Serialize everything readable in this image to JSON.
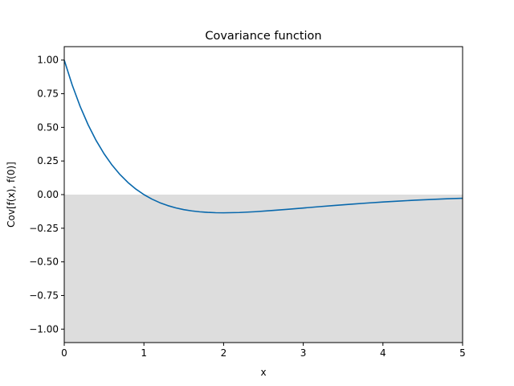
{
  "chart_data": {
    "type": "line",
    "title": "Covariance function",
    "xlabel": "x",
    "ylabel": "Cov[f(x), f(0)]",
    "xlim": [
      0,
      5
    ],
    "ylim": [
      -1.1,
      1.1
    ],
    "xticks": [
      0,
      1,
      2,
      3,
      4,
      5
    ],
    "xtick_labels": [
      "0",
      "1",
      "2",
      "3",
      "4",
      "5"
    ],
    "yticks": [
      1.0,
      0.75,
      0.5,
      0.25,
      0.0,
      -0.25,
      -0.5,
      -0.75,
      -1.0
    ],
    "ytick_labels": [
      "1.00",
      "0.75",
      "0.50",
      "0.25",
      "0.00",
      "−0.25",
      "−0.50",
      "−0.75",
      "−1.00"
    ],
    "grid": false,
    "shaded_region": {
      "y_from": -1.1,
      "y_to": 0.0,
      "color": "#dddddd"
    },
    "series": [
      {
        "color": "#0868ac",
        "x": [
          0,
          0.1,
          0.2,
          0.3,
          0.4,
          0.5,
          0.6,
          0.7,
          0.8,
          0.9,
          1.0,
          1.1,
          1.2,
          1.3,
          1.4,
          1.5,
          1.6,
          1.7,
          1.8,
          1.9,
          2.0,
          2.2,
          2.4,
          2.6,
          2.8,
          3.0,
          3.2,
          3.4,
          3.6,
          3.8,
          4.0,
          4.2,
          4.4,
          4.6,
          4.8,
          5.0
        ],
        "y": [
          1.0,
          0.8145,
          0.655,
          0.5186,
          0.4022,
          0.3033,
          0.2195,
          0.149,
          0.0899,
          0.0406,
          0.0,
          -0.0333,
          -0.0602,
          -0.0817,
          -0.0986,
          -0.1116,
          -0.1211,
          -0.1278,
          -0.1322,
          -0.1345,
          -0.1353,
          -0.133,
          -0.127,
          -0.1187,
          -0.1095,
          -0.0996,
          -0.0897,
          -0.0801,
          -0.0711,
          -0.0627,
          -0.055,
          -0.048,
          -0.0417,
          -0.0361,
          -0.0312,
          -0.027
        ]
      }
    ]
  }
}
